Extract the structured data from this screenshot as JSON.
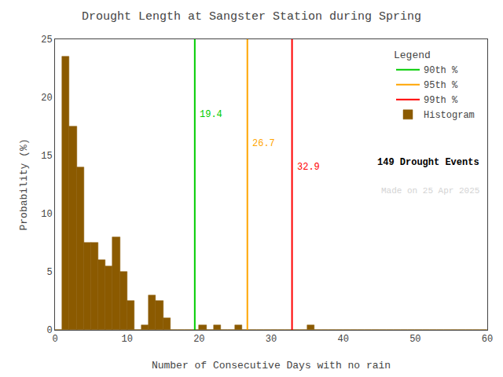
{
  "chart_data": {
    "type": "histogram",
    "title": "Drought Length at Sangster Station during Spring",
    "xlabel": "Number of Consecutive Days with no rain",
    "ylabel": "Probability (%)",
    "bins": [
      0,
      1,
      2,
      3,
      4,
      5,
      6,
      7,
      8,
      9,
      10,
      11,
      12,
      13,
      14,
      15,
      16,
      17,
      18,
      19,
      20,
      21,
      22,
      23,
      24,
      25,
      26,
      27,
      28,
      29,
      30,
      31,
      32,
      33,
      34,
      35,
      36,
      37,
      38,
      39,
      40,
      41,
      42,
      43,
      44,
      45,
      46,
      47,
      48,
      49,
      50,
      51,
      52,
      53,
      54,
      55,
      56,
      57,
      58,
      59,
      60
    ],
    "values": [
      0,
      23.5,
      17.5,
      14.0,
      7.5,
      7.5,
      6.0,
      5.5,
      8.0,
      5.0,
      2.5,
      0.0,
      0.4,
      3.0,
      2.5,
      1.0,
      0.0,
      0.0,
      0.0,
      0.0,
      0.4,
      0.0,
      0.4,
      0.0,
      0.0,
      0.4,
      0.0,
      0.0,
      0.0,
      0.0,
      0.0,
      0.0,
      0.0,
      0.0,
      0.0,
      0.4,
      0.0,
      0.0,
      0.0,
      0.0,
      0.0,
      0.0,
      0.0,
      0.0,
      0.0,
      0.0,
      0.0,
      0.0,
      0.0,
      0.0,
      0.0,
      0.0,
      0.0,
      0.0,
      0.0,
      0.0,
      0.0,
      0.0,
      0.0,
      0.0
    ],
    "name": "Histogram",
    "color": "#8B5A00",
    "percentiles": [
      {
        "name": "90th %",
        "value": 19.4,
        "color": "#00CC00"
      },
      {
        "name": "95th %",
        "value": 26.7,
        "color": "#FFA500"
      },
      {
        "name": "99th %",
        "value": 32.9,
        "color": "#FF0000"
      }
    ],
    "xlim": [
      0,
      60
    ],
    "xticks": [
      0,
      10,
      20,
      30,
      40,
      50,
      60
    ],
    "ylim": [
      0,
      25
    ],
    "yticks": [
      0,
      5,
      10,
      15,
      20,
      25
    ],
    "grid": false,
    "legend": "upper right",
    "legend_title": "Legend",
    "annotations": [
      {
        "text": "149 Drought Events",
        "color": "black"
      },
      {
        "text": "Made on 25 Apr 2025",
        "color": "lightgray"
      }
    ]
  }
}
